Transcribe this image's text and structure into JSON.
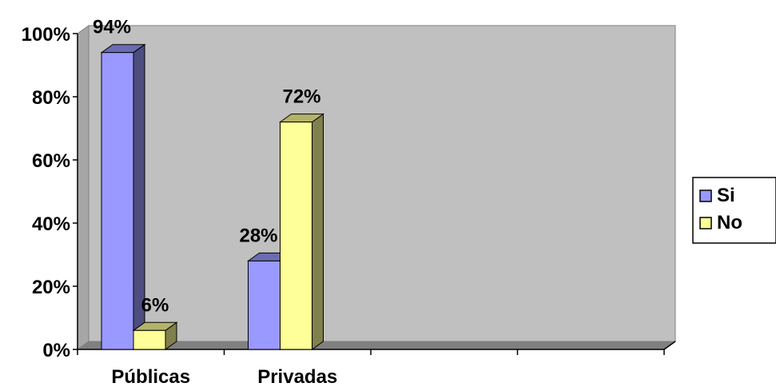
{
  "chart_data": {
    "type": "bar",
    "title": "",
    "xlabel": "",
    "ylabel": "",
    "categories": [
      "Públicas",
      "Privadas"
    ],
    "axis_slots": 4,
    "ylim": [
      0,
      100
    ],
    "y_ticks": [
      0,
      20,
      40,
      60,
      80,
      100
    ],
    "y_tick_labels": [
      "0%",
      "20%",
      "40%",
      "60%",
      "80%",
      "100%"
    ],
    "series": [
      {
        "name": "Si",
        "values": [
          94,
          28
        ],
        "data_labels": [
          "94%",
          "28%"
        ],
        "color": "#9999ff"
      },
      {
        "name": "No",
        "values": [
          6,
          72
        ],
        "data_labels": [
          "6%",
          "72%"
        ],
        "color": "#ffff99"
      }
    ],
    "grid": false,
    "legend": "right",
    "style": "3d-clustered-column",
    "plot_background": "#c0c0c0"
  }
}
